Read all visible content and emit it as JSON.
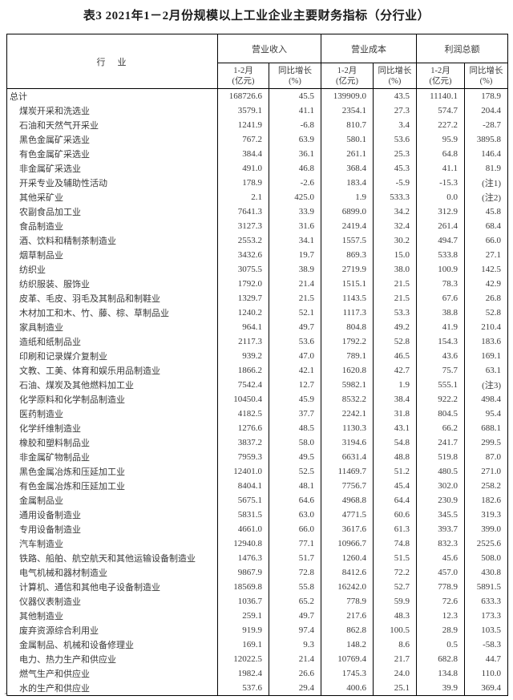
{
  "title": "表3 2021年1－2月份规模以上工业企业主要财务指标（分行业）",
  "stray_mark": "∿",
  "table": {
    "industry_header": "行　业",
    "groups": [
      {
        "label": "营业收入",
        "col1_line1": "1-2月",
        "col1_line2": "(亿元)",
        "col2_line1": "同比增长",
        "col2_line2": "(%)"
      },
      {
        "label": "营业成本",
        "col1_line1": "1-2月",
        "col1_line2": "(亿元)",
        "col2_line1": "同比增长",
        "col2_line2": "(%)"
      },
      {
        "label": "利润总额",
        "col1_line1": "1-2月",
        "col1_line2": "(亿元)",
        "col2_line1": "同比增长",
        "col2_line2": "(%)"
      }
    ],
    "rows": [
      {
        "industry": "总计",
        "indent": 0,
        "values": [
          "168726.6",
          "45.5",
          "139909.0",
          "43.5",
          "11140.1",
          "178.9"
        ]
      },
      {
        "industry": "煤炭开采和洗选业",
        "indent": 1,
        "values": [
          "3579.1",
          "41.1",
          "2354.1",
          "27.3",
          "574.7",
          "204.4"
        ]
      },
      {
        "industry": "石油和天然气开采业",
        "indent": 1,
        "values": [
          "1241.9",
          "-6.8",
          "810.7",
          "3.4",
          "227.2",
          "-28.7"
        ]
      },
      {
        "industry": "黑色金属矿采选业",
        "indent": 1,
        "values": [
          "767.2",
          "63.9",
          "580.1",
          "53.6",
          "95.9",
          "3895.8"
        ]
      },
      {
        "industry": "有色金属矿采选业",
        "indent": 1,
        "values": [
          "384.4",
          "36.1",
          "261.1",
          "25.3",
          "64.8",
          "146.4"
        ]
      },
      {
        "industry": "非金属矿采选业",
        "indent": 1,
        "values": [
          "491.0",
          "46.8",
          "368.4",
          "45.3",
          "41.1",
          "81.9"
        ]
      },
      {
        "industry": "开采专业及辅助性活动",
        "indent": 1,
        "values": [
          "178.9",
          "-2.6",
          "183.4",
          "-5.9",
          "-15.3",
          "(注1)"
        ]
      },
      {
        "industry": "其他采矿业",
        "indent": 1,
        "values": [
          "2.1",
          "425.0",
          "1.9",
          "533.3",
          "0.0",
          "(注2)"
        ]
      },
      {
        "industry": "农副食品加工业",
        "indent": 1,
        "values": [
          "7641.3",
          "33.9",
          "6899.0",
          "34.2",
          "312.9",
          "45.8"
        ]
      },
      {
        "industry": "食品制造业",
        "indent": 1,
        "values": [
          "3127.3",
          "31.6",
          "2419.4",
          "32.4",
          "261.4",
          "68.4"
        ]
      },
      {
        "industry": "酒、饮料和精制茶制造业",
        "indent": 1,
        "values": [
          "2553.2",
          "34.1",
          "1557.5",
          "30.2",
          "494.7",
          "66.0"
        ]
      },
      {
        "industry": "烟草制品业",
        "indent": 1,
        "values": [
          "3432.6",
          "19.7",
          "869.3",
          "15.0",
          "533.8",
          "27.1"
        ]
      },
      {
        "industry": "纺织业",
        "indent": 1,
        "values": [
          "3075.5",
          "38.9",
          "2719.9",
          "38.0",
          "100.9",
          "142.5"
        ]
      },
      {
        "industry": "纺织服装、服饰业",
        "indent": 1,
        "values": [
          "1792.0",
          "21.4",
          "1515.1",
          "21.5",
          "78.3",
          "42.9"
        ]
      },
      {
        "industry": "皮革、毛皮、羽毛及其制品和制鞋业",
        "indent": 1,
        "values": [
          "1329.7",
          "21.5",
          "1143.5",
          "21.5",
          "67.6",
          "26.8"
        ]
      },
      {
        "industry": "木材加工和木、竹、藤、棕、草制品业",
        "indent": 1,
        "values": [
          "1240.2",
          "52.1",
          "1117.3",
          "53.3",
          "38.8",
          "52.8"
        ]
      },
      {
        "industry": "家具制造业",
        "indent": 1,
        "values": [
          "964.1",
          "49.7",
          "804.8",
          "49.2",
          "41.9",
          "210.4"
        ]
      },
      {
        "industry": "造纸和纸制品业",
        "indent": 1,
        "values": [
          "2117.3",
          "53.6",
          "1792.2",
          "52.8",
          "154.3",
          "183.6"
        ]
      },
      {
        "industry": "印刷和记录媒介复制业",
        "indent": 1,
        "values": [
          "939.2",
          "47.0",
          "789.1",
          "46.5",
          "43.6",
          "169.1"
        ]
      },
      {
        "industry": "文教、工美、体育和娱乐用品制造业",
        "indent": 1,
        "values": [
          "1866.2",
          "42.1",
          "1620.8",
          "42.7",
          "75.7",
          "63.1"
        ]
      },
      {
        "industry": "石油、煤炭及其他燃料加工业",
        "indent": 1,
        "values": [
          "7542.4",
          "12.7",
          "5982.1",
          "1.9",
          "555.1",
          "(注3)"
        ]
      },
      {
        "industry": "化学原料和化学制品制造业",
        "indent": 1,
        "values": [
          "10450.4",
          "45.9",
          "8532.2",
          "38.4",
          "922.2",
          "498.4"
        ]
      },
      {
        "industry": "医药制造业",
        "indent": 1,
        "values": [
          "4182.5",
          "37.7",
          "2242.1",
          "31.8",
          "804.5",
          "95.4"
        ]
      },
      {
        "industry": "化学纤维制造业",
        "indent": 1,
        "values": [
          "1276.6",
          "48.5",
          "1130.3",
          "43.1",
          "66.2",
          "688.1"
        ]
      },
      {
        "industry": "橡胶和塑料制品业",
        "indent": 1,
        "values": [
          "3837.2",
          "58.0",
          "3194.6",
          "54.8",
          "241.7",
          "299.5"
        ]
      },
      {
        "industry": "非金属矿物制品业",
        "indent": 1,
        "values": [
          "7959.3",
          "49.5",
          "6631.4",
          "48.8",
          "519.8",
          "87.0"
        ]
      },
      {
        "industry": "黑色金属冶炼和压延加工业",
        "indent": 1,
        "values": [
          "12401.0",
          "52.5",
          "11469.7",
          "51.2",
          "480.5",
          "271.0"
        ]
      },
      {
        "industry": "有色金属冶炼和压延加工业",
        "indent": 1,
        "values": [
          "8404.1",
          "48.1",
          "7756.7",
          "45.4",
          "302.0",
          "258.2"
        ]
      },
      {
        "industry": "金属制品业",
        "indent": 1,
        "values": [
          "5675.1",
          "64.6",
          "4968.8",
          "64.4",
          "230.9",
          "182.6"
        ]
      },
      {
        "industry": "通用设备制造业",
        "indent": 1,
        "values": [
          "5831.5",
          "63.0",
          "4771.5",
          "60.6",
          "345.5",
          "319.3"
        ]
      },
      {
        "industry": "专用设备制造业",
        "indent": 1,
        "values": [
          "4661.0",
          "66.0",
          "3617.6",
          "61.3",
          "393.7",
          "399.0"
        ]
      },
      {
        "industry": "汽车制造业",
        "indent": 1,
        "values": [
          "12940.8",
          "77.1",
          "10966.7",
          "74.8",
          "832.3",
          "2525.6"
        ]
      },
      {
        "industry": "铁路、船舶、航空航天和其他运输设备制造业",
        "indent": 1,
        "values": [
          "1476.3",
          "51.7",
          "1260.4",
          "51.5",
          "45.6",
          "508.0"
        ]
      },
      {
        "industry": "电气机械和器材制造业",
        "indent": 1,
        "values": [
          "9867.9",
          "72.8",
          "8412.6",
          "72.2",
          "457.0",
          "430.8"
        ]
      },
      {
        "industry": "计算机、通信和其他电子设备制造业",
        "indent": 1,
        "values": [
          "18569.8",
          "55.8",
          "16242.0",
          "52.7",
          "778.9",
          "5891.5"
        ]
      },
      {
        "industry": "仪器仪表制造业",
        "indent": 1,
        "values": [
          "1036.7",
          "65.2",
          "778.9",
          "59.9",
          "72.6",
          "633.3"
        ]
      },
      {
        "industry": "其他制造业",
        "indent": 1,
        "values": [
          "259.1",
          "49.7",
          "217.6",
          "48.3",
          "12.3",
          "173.3"
        ]
      },
      {
        "industry": "废弃资源综合利用业",
        "indent": 1,
        "values": [
          "919.9",
          "97.4",
          "862.8",
          "100.5",
          "28.9",
          "103.5"
        ]
      },
      {
        "industry": "金属制品、机械和设备修理业",
        "indent": 1,
        "values": [
          "169.1",
          "9.3",
          "148.2",
          "8.6",
          "0.5",
          "-58.3"
        ]
      },
      {
        "industry": "电力、热力生产和供应业",
        "indent": 1,
        "values": [
          "12022.5",
          "21.4",
          "10769.4",
          "21.7",
          "682.8",
          "44.7"
        ]
      },
      {
        "industry": "燃气生产和供应业",
        "indent": 1,
        "values": [
          "1982.4",
          "26.6",
          "1745.3",
          "24.0",
          "134.8",
          "110.0"
        ]
      },
      {
        "industry": "水的生产和供应业",
        "indent": 1,
        "values": [
          "537.6",
          "29.4",
          "400.6",
          "25.1",
          "39.9",
          "369.4"
        ]
      }
    ]
  }
}
